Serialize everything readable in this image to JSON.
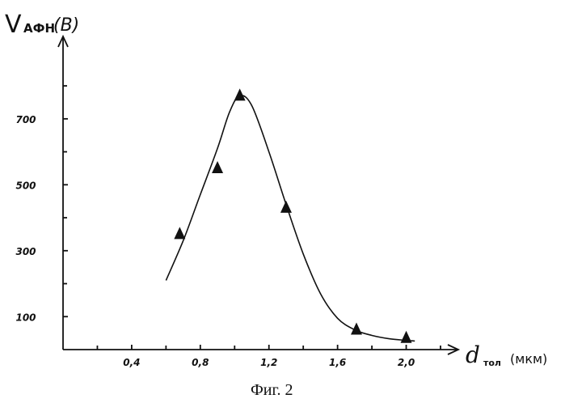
{
  "chart_data": {
    "type": "line",
    "y_title": {
      "symbol": "V",
      "subscript": "АФН",
      "unit": "(В)"
    },
    "x_title": {
      "symbol": "d",
      "subscript": "тол",
      "unit": "(мкм)"
    },
    "caption": "Фиг. 2",
    "x_ticks": [
      "0,4",
      "0,8",
      "1,2",
      "1,6",
      "2,0"
    ],
    "x_tick_values": [
      0.4,
      0.8,
      1.2,
      1.6,
      2.0
    ],
    "y_ticks": [
      "100",
      "300",
      "500",
      "700"
    ],
    "y_tick_values": [
      100,
      300,
      500,
      700
    ],
    "xlim": [
      0.0,
      2.2
    ],
    "ylim": [
      0,
      950
    ],
    "grid": false,
    "series": [
      {
        "marker": "triangle",
        "x": [
          0.68,
          0.9,
          1.03,
          1.3,
          1.71,
          2.0
        ],
        "y": [
          350,
          550,
          770,
          430,
          60,
          35
        ]
      }
    ],
    "fit_curve": {
      "x": [
        0.6,
        0.7,
        0.8,
        0.9,
        0.97,
        1.03,
        1.1,
        1.2,
        1.3,
        1.4,
        1.5,
        1.6,
        1.7,
        1.8,
        1.9,
        2.0,
        2.05
      ],
      "y": [
        210,
        330,
        470,
        610,
        720,
        770,
        740,
        600,
        440,
        290,
        170,
        95,
        60,
        43,
        33,
        28,
        26
      ]
    }
  }
}
